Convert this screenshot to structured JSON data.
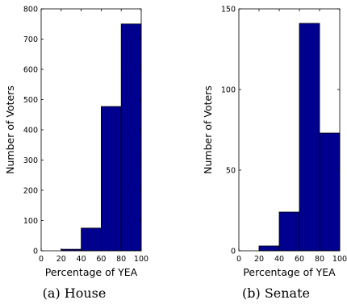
{
  "chart_data": [
    {
      "type": "bar",
      "caption": "(a) House",
      "xlabel": "Percentage of YEA",
      "ylabel": "Number of Voters",
      "bin_edges": [
        20,
        40,
        60,
        80,
        100
      ],
      "values": [
        5,
        75,
        477,
        750
      ],
      "xlim": [
        0,
        100
      ],
      "ylim": [
        0,
        800
      ],
      "xticks": [
        0,
        20,
        40,
        60,
        80,
        100
      ],
      "yticks": [
        0,
        100,
        200,
        300,
        400,
        500,
        600,
        700,
        800
      ],
      "bar_color": "#00008f",
      "grid": false
    },
    {
      "type": "bar",
      "caption": "(b) Senate",
      "xlabel": "Percentage of YEA",
      "ylabel": "Number of Voters",
      "bin_edges": [
        20,
        40,
        60,
        80,
        100
      ],
      "values": [
        3,
        24,
        141,
        73
      ],
      "xlim": [
        0,
        100
      ],
      "ylim": [
        0,
        150
      ],
      "xticks": [
        0,
        20,
        40,
        60,
        80,
        100
      ],
      "yticks": [
        0,
        50,
        100,
        150
      ],
      "bar_color": "#00008f",
      "grid": false
    }
  ]
}
